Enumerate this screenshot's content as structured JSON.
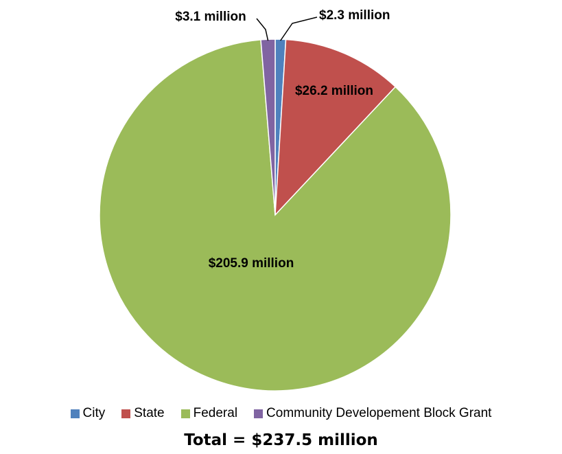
{
  "chart_data": {
    "type": "pie",
    "slices": [
      {
        "name": "City",
        "value": 2.3,
        "label": "$2.3 million",
        "color": "#4F81BD"
      },
      {
        "name": "State",
        "value": 26.2,
        "label": "$26.2 million",
        "color": "#C0504D"
      },
      {
        "name": "Federal",
        "value": 205.9,
        "label": "$205.9 million",
        "color": "#9BBB59"
      },
      {
        "name": "Community Developement Block Grant",
        "value": 3.1,
        "label": "$3.1 million",
        "color": "#8064A2"
      }
    ],
    "legend_placement": "bottom",
    "total_label": "Total = $237.5 million"
  }
}
